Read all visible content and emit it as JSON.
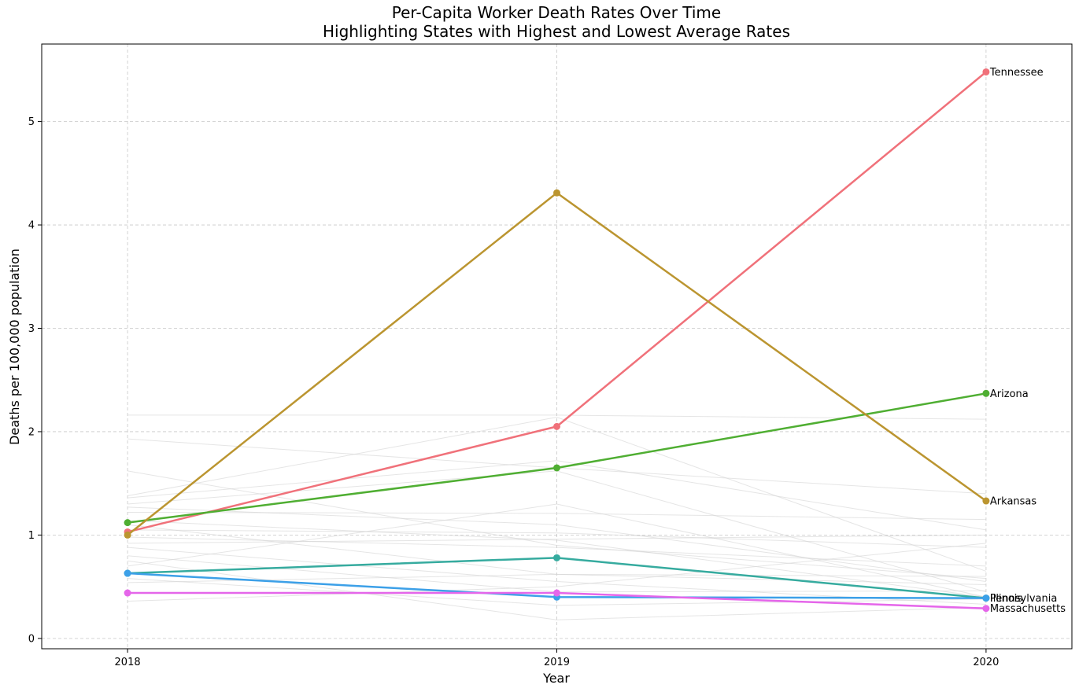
{
  "chart_data": {
    "type": "line",
    "title": "Per-Capita Worker Death Rates Over Time\nHighlighting States with Highest and Lowest Average Rates",
    "xlabel": "Year",
    "ylabel": "Deaths per 100,000 population",
    "x": [
      2018,
      2019,
      2020
    ],
    "xlim": [
      2017.8,
      2020.2
    ],
    "ylim": [
      -0.1,
      5.75
    ],
    "yticks": [
      0,
      1,
      2,
      3,
      4,
      5
    ],
    "xticks": [
      2018,
      2019,
      2020
    ],
    "grid": true,
    "highlighted_series": [
      {
        "name": "Tennessee",
        "color": "#f0717a",
        "values": [
          1.03,
          2.05,
          5.48
        ]
      },
      {
        "name": "Arizona",
        "color": "#4fae32",
        "values": [
          1.12,
          1.65,
          2.37
        ]
      },
      {
        "name": "Arkansas",
        "color": "#bb9530",
        "values": [
          1.0,
          4.31,
          1.33
        ]
      },
      {
        "name": "Illinois",
        "color": "#36ab9f",
        "values": [
          0.63,
          0.78,
          0.39
        ]
      },
      {
        "name": "Pennsylvania",
        "color": "#3ca0e8",
        "values": [
          0.63,
          0.4,
          0.39
        ]
      },
      {
        "name": "Massachusetts",
        "color": "#e566ea",
        "values": [
          0.44,
          0.44,
          0.29
        ]
      }
    ],
    "background_series_color": "#d3d3d3",
    "background_series": [
      [
        2.16,
        2.16,
        2.12
      ],
      [
        1.93,
        1.65,
        1.4
      ],
      [
        1.62,
        0.9,
        0.58
      ],
      [
        1.38,
        2.14,
        0.65
      ],
      [
        1.36,
        1.72,
        1.05
      ],
      [
        1.3,
        1.62,
        0.45
      ],
      [
        1.27,
        1.1,
        0.55
      ],
      [
        1.22,
        1.21,
        1.15
      ],
      [
        1.14,
        0.95,
        0.4
      ],
      [
        1.1,
        0.62,
        0.6
      ],
      [
        1.05,
        1.02,
        0.88
      ],
      [
        0.98,
        0.88,
        0.7
      ],
      [
        0.92,
        0.96,
        1.0
      ],
      [
        0.88,
        0.55,
        0.33
      ],
      [
        0.8,
        0.45,
        0.46
      ],
      [
        0.75,
        0.18,
        0.3
      ],
      [
        0.7,
        1.3,
        0.4
      ],
      [
        0.58,
        0.32,
        0.38
      ],
      [
        0.54,
        0.62,
        0.52
      ],
      [
        0.36,
        0.5,
        0.92
      ]
    ]
  }
}
